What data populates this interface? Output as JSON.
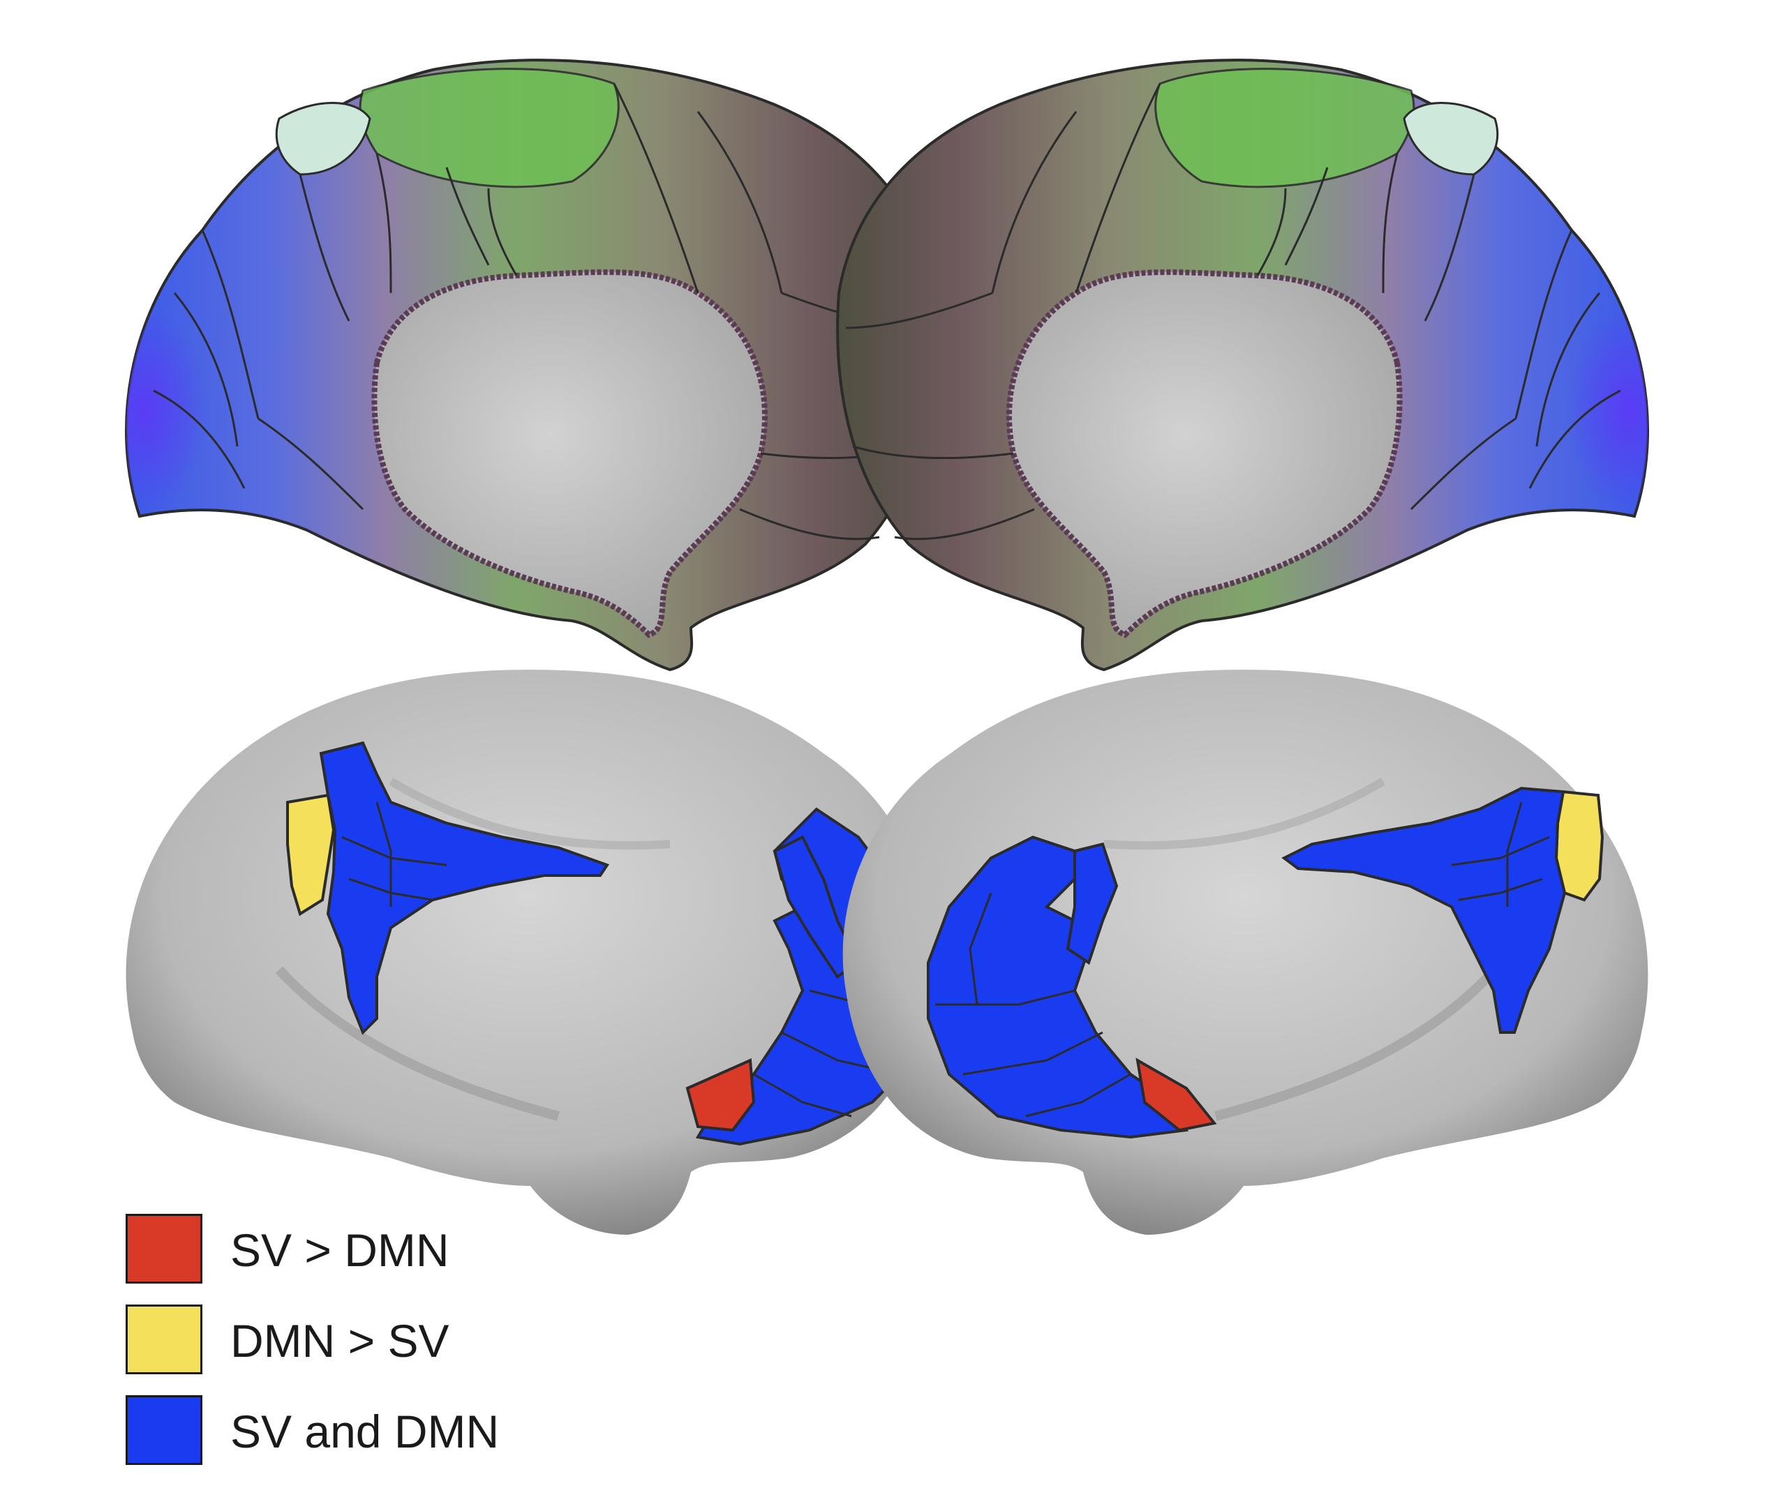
{
  "colors": {
    "background": "#ffffff",
    "cortex_gray": "#c9c9c9",
    "medial_wall": "#c8c8c8",
    "outline": "#2b2b2b",
    "sv_gt_dmn": "#d93a28",
    "dmn_gt_sv": "#f5e05c",
    "sv_and_dmn": "#1a3cf0"
  },
  "legend": {
    "items": [
      {
        "label": "SV > DMN",
        "color": "#d93a28"
      },
      {
        "label": "DMN > SV",
        "color": "#f5e05c"
      },
      {
        "label": "SV and DMN",
        "color": "#1a3cf0"
      }
    ]
  }
}
